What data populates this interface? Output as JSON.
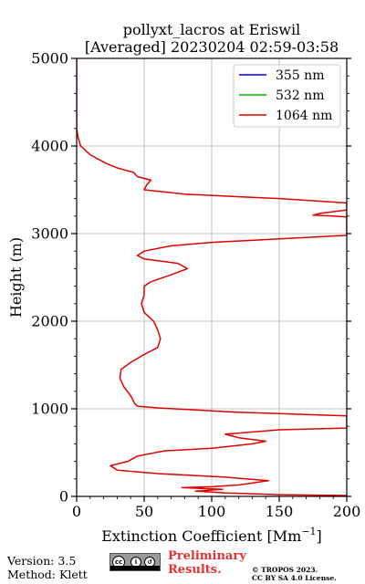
{
  "chart_data": {
    "type": "line",
    "title_line1": "pollyxt_lacros at Eriswil",
    "title_line2": "[Averaged] 20230204 02:59-03:58",
    "xlabel": "Extinction Coefficient",
    "xlabel_unit": "[Mm",
    "xlabel_unit_sup": "−1",
    "xlabel_unit_close": "]",
    "ylabel": "Height (m)",
    "xlim": [
      0,
      200
    ],
    "ylim": [
      0,
      5000
    ],
    "x_ticks": [
      "0",
      "50",
      "100",
      "150",
      "200"
    ],
    "y_ticks": [
      "0",
      "1000",
      "2000",
      "3000",
      "4000",
      "5000"
    ],
    "grid": true,
    "legend_position": "top-right",
    "series": [
      {
        "name": "355 nm",
        "color": "#0000ff",
        "points": []
      },
      {
        "name": "532 nm",
        "color": "#00b000",
        "points": []
      },
      {
        "name": "1064 nm",
        "color": "#e00000",
        "points": [
          [
            200,
            10
          ],
          [
            150,
            20
          ],
          [
            130,
            30
          ],
          [
            110,
            40
          ],
          [
            100,
            50
          ],
          [
            88,
            60
          ],
          [
            108,
            80
          ],
          [
            78,
            100
          ],
          [
            100,
            110
          ],
          [
            120,
            130
          ],
          [
            142,
            180
          ],
          [
            110,
            220
          ],
          [
            60,
            260
          ],
          [
            30,
            300
          ],
          [
            25,
            350
          ],
          [
            38,
            400
          ],
          [
            45,
            460
          ],
          [
            65,
            520
          ],
          [
            100,
            550
          ],
          [
            130,
            600
          ],
          [
            140,
            630
          ],
          [
            120,
            670
          ],
          [
            110,
            710
          ],
          [
            150,
            760
          ],
          [
            200,
            780
          ],
          [
            200,
            920
          ],
          [
            120,
            960
          ],
          [
            60,
            1010
          ],
          [
            45,
            1030
          ],
          [
            43,
            1060
          ],
          [
            40,
            1150
          ],
          [
            35,
            1250
          ],
          [
            32,
            1350
          ],
          [
            33,
            1450
          ],
          [
            40,
            1530
          ],
          [
            50,
            1620
          ],
          [
            60,
            1700
          ],
          [
            62,
            1800
          ],
          [
            60,
            1900
          ],
          [
            57,
            2000
          ],
          [
            50,
            2100
          ],
          [
            48,
            2200
          ],
          [
            50,
            2300
          ],
          [
            50,
            2400
          ],
          [
            55,
            2450
          ],
          [
            70,
            2530
          ],
          [
            82,
            2600
          ],
          [
            75,
            2660
          ],
          [
            50,
            2710
          ],
          [
            45,
            2750
          ],
          [
            50,
            2800
          ],
          [
            70,
            2860
          ],
          [
            100,
            2900
          ],
          [
            200,
            2980
          ],
          [
            200,
            3270
          ],
          [
            180,
            3230
          ],
          [
            175,
            3210
          ],
          [
            190,
            3200
          ],
          [
            200,
            3190
          ],
          [
            200,
            3350
          ],
          [
            150,
            3400
          ],
          [
            80,
            3450
          ],
          [
            50,
            3500
          ],
          [
            52,
            3560
          ],
          [
            55,
            3610
          ],
          [
            45,
            3650
          ],
          [
            42,
            3700
          ],
          [
            30,
            3750
          ],
          [
            22,
            3800
          ],
          [
            10,
            3900
          ],
          [
            3,
            4000
          ],
          [
            1,
            4100
          ],
          [
            0,
            4200
          ],
          [
            0,
            4400
          ],
          [
            0,
            4700
          ],
          [
            0,
            5000
          ]
        ]
      }
    ]
  },
  "footer": {
    "version": "Version: 3.5",
    "method": "Method: Klett",
    "prelim_line1": "Preliminary",
    "prelim_line2": "Results.",
    "copyright_line1": "© TROPOS 2023.",
    "copyright_line2": "CC BY SA 4.0 License.",
    "license_badge_text": "BY SA"
  }
}
